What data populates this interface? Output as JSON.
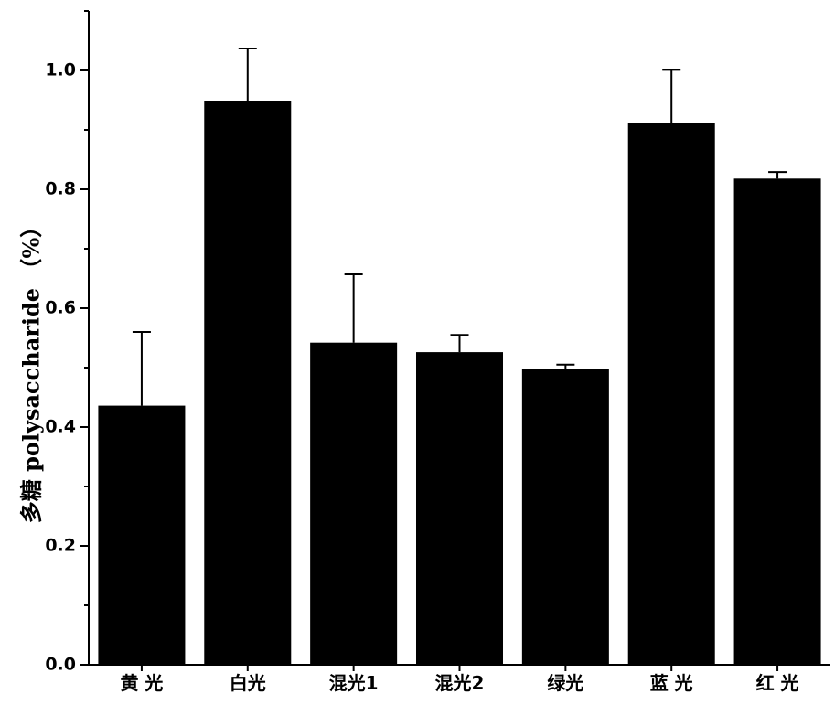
{
  "chart_data": {
    "type": "bar",
    "categories": [
      "黄 光",
      "白光",
      "混光1",
      "混光2",
      "绿光",
      "蓝 光",
      "红 光"
    ],
    "series": [
      {
        "values": [
          0.436,
          0.948,
          0.542,
          0.526,
          0.497,
          0.911,
          0.818
        ],
        "errors": [
          0.124,
          0.089,
          0.115,
          0.029,
          0.008,
          0.09,
          0.011
        ]
      }
    ],
    "title": "",
    "xlabel": "",
    "ylabel": "多糖 polysaccharide （%）",
    "ylim": [
      0,
      1.1
    ],
    "yticks": [
      0.0,
      0.2,
      0.4,
      0.6,
      0.8,
      1.0
    ],
    "ytick_labels": [
      "0.0",
      "0.2",
      "0.4",
      "0.6",
      "0.8",
      "1.0"
    ],
    "grid": false,
    "bar_color": "#000000",
    "axis_color": "#000000"
  }
}
